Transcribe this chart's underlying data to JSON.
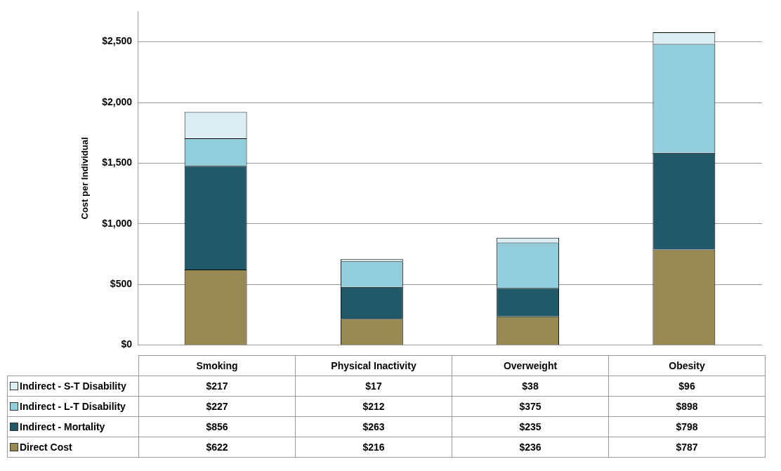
{
  "chart_data": {
    "type": "bar",
    "stacked": true,
    "ylabel": "Cost per Individual",
    "categories": [
      "Smoking",
      "Physical Inactivity",
      "Overweight",
      "Obesity"
    ],
    "series": [
      {
        "name": "Direct Cost",
        "color": "#968a52",
        "values": [
          622,
          216,
          236,
          787
        ],
        "value_labels": [
          "$622",
          "$216",
          "$236",
          "$787"
        ]
      },
      {
        "name": "Indirect - Mortality",
        "color": "#215968",
        "values": [
          856,
          263,
          235,
          798
        ],
        "value_labels": [
          "$856",
          "$263",
          "$235",
          "$798"
        ]
      },
      {
        "name": "Indirect - L-T Disability",
        "color": "#92cddc",
        "values": [
          227,
          212,
          375,
          898
        ],
        "value_labels": [
          "$227",
          "$212",
          "$375",
          "$898"
        ]
      },
      {
        "name": "Indirect - S-T Disability",
        "color": "#daeef3",
        "values": [
          217,
          17,
          38,
          96
        ],
        "value_labels": [
          "$217",
          "$17",
          "$38",
          "$96"
        ]
      }
    ],
    "ylim": [
      0,
      2750
    ],
    "yticks": [
      {
        "value": 0,
        "label": "$0"
      },
      {
        "value": 500,
        "label": "$500"
      },
      {
        "value": 1000,
        "label": "$1,000"
      },
      {
        "value": 1500,
        "label": "$1,500"
      },
      {
        "value": 2000,
        "label": "$2,000"
      },
      {
        "value": 2500,
        "label": "$2,500"
      }
    ],
    "grid": "y",
    "legend": "bottom"
  }
}
